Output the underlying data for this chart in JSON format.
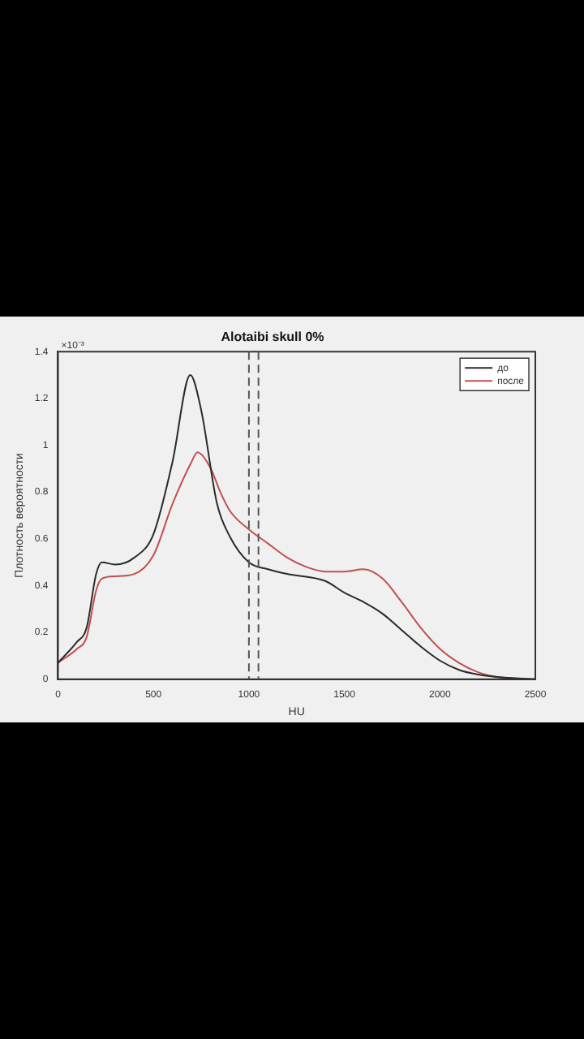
{
  "chart_data": {
    "type": "line",
    "title": "Alotaibi skull 0%",
    "xlabel": "HU",
    "ylabel": "Плотность вероятности",
    "annotations": [
      "×10⁻³"
    ],
    "series": [
      {
        "name": "до",
        "color": "#2b2b2b",
        "x": [
          0,
          100,
          150,
          200,
          230,
          300,
          400,
          500,
          600,
          693,
          750,
          833,
          900,
          1000,
          1100,
          1200,
          1400,
          1500,
          1600,
          1700,
          1800,
          1900,
          2000,
          2100,
          2200,
          2300,
          2500
        ],
        "values": [
          0.07,
          0.16,
          0.22,
          0.45,
          0.5,
          0.49,
          0.52,
          0.62,
          0.93,
          1.3,
          1.15,
          0.75,
          0.61,
          0.5,
          0.47,
          0.45,
          0.42,
          0.37,
          0.33,
          0.28,
          0.21,
          0.14,
          0.08,
          0.04,
          0.02,
          0.01,
          0
        ]
      },
      {
        "name": "после",
        "color": "#c0504d",
        "x": [
          0,
          100,
          150,
          200,
          230,
          300,
          400,
          500,
          600,
          700,
          730,
          800,
          850,
          900,
          1000,
          1100,
          1200,
          1300,
          1400,
          1500,
          1600,
          1700,
          1800,
          1900,
          2000,
          2100,
          2200,
          2300,
          2500
        ],
        "values": [
          0.07,
          0.13,
          0.18,
          0.38,
          0.43,
          0.44,
          0.45,
          0.53,
          0.75,
          0.93,
          0.97,
          0.9,
          0.8,
          0.72,
          0.64,
          0.58,
          0.52,
          0.48,
          0.46,
          0.46,
          0.47,
          0.43,
          0.33,
          0.22,
          0.13,
          0.07,
          0.03,
          0.01,
          0
        ]
      }
    ],
    "xlim": [
      0,
      2500
    ],
    "xticks": [
      0,
      500,
      1000,
      1500,
      2000,
      2500
    ],
    "ylim": [
      0,
      1.4
    ],
    "yticks": [
      0,
      0.2,
      0.4,
      0.6,
      0.8,
      1,
      1.2,
      1.4
    ],
    "ref_lines": [
      {
        "axis": "x",
        "value": 1000,
        "color": "#555555",
        "line_style": "dashed"
      },
      {
        "axis": "x",
        "value": 1050,
        "color": "#555555",
        "line_style": "dashed"
      }
    ],
    "grid": false,
    "legend": "top right",
    "line_style": "solid",
    "marker": "none"
  }
}
